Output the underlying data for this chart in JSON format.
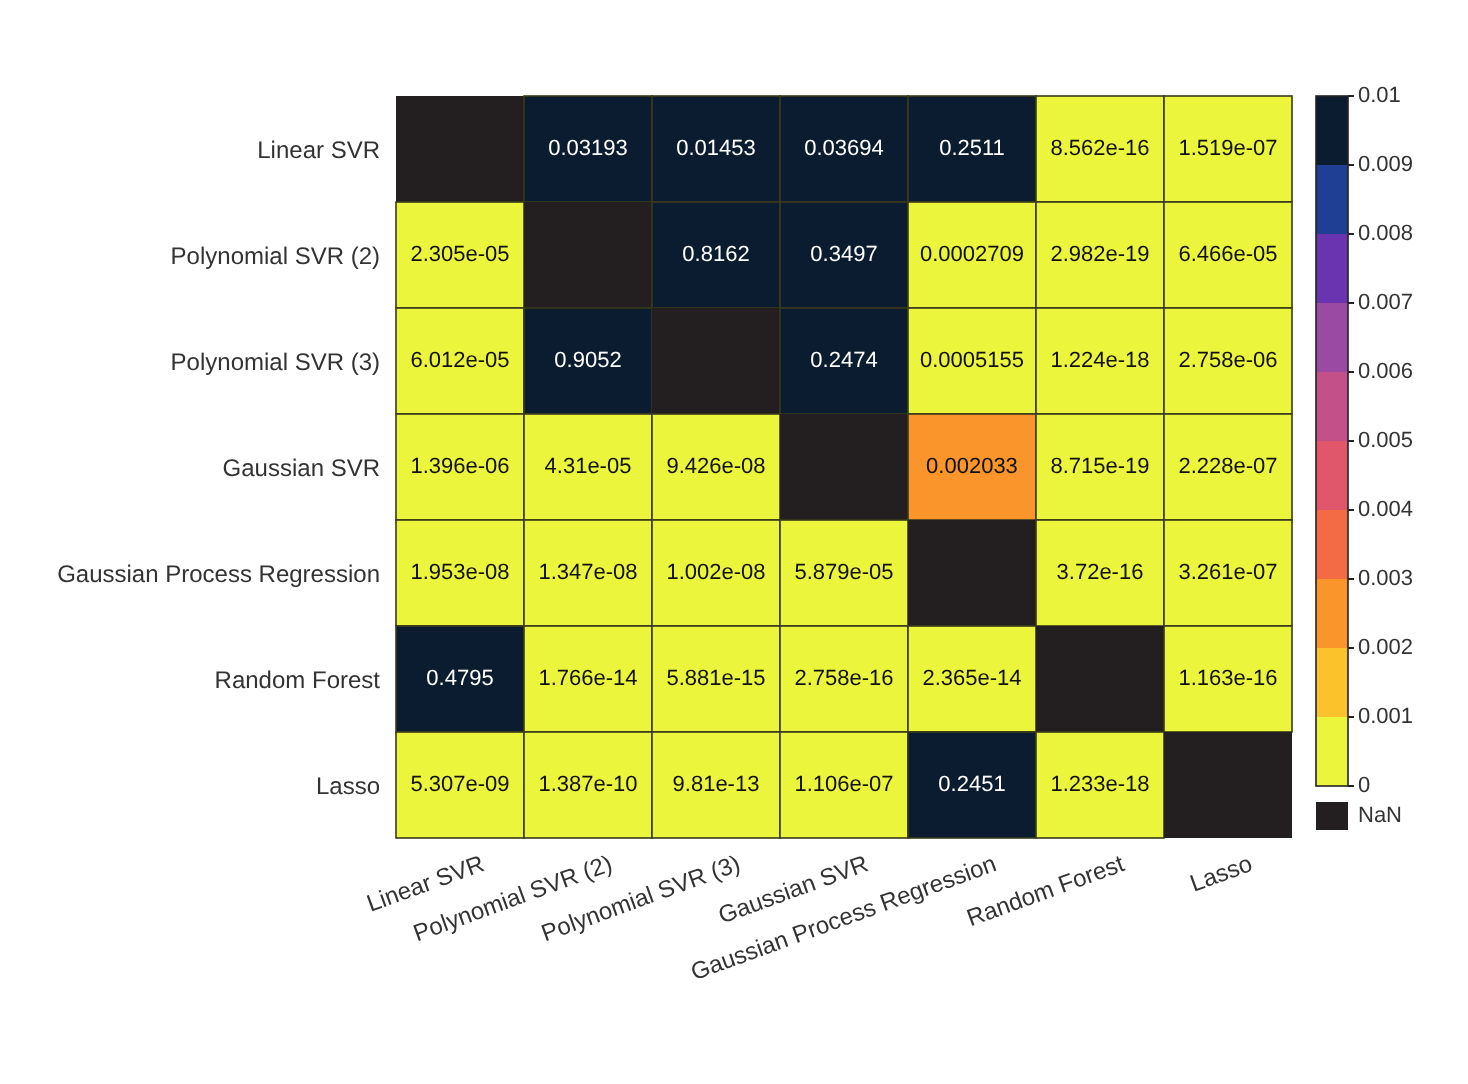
{
  "chart_data": {
    "type": "heatmap",
    "categories": [
      "Linear SVR",
      "Polynomial SVR (2)",
      "Polynomial SVR (3)",
      "Gaussian SVR",
      "Gaussian Process Regression",
      "Random Forest",
      "Lasso"
    ],
    "y_categories": [
      "Linear SVR",
      "Polynomial SVR (2)",
      "Polynomial SVR (3)",
      "Gaussian SVR",
      "Gaussian Process Regression",
      "Random Forest",
      "Lasso"
    ],
    "cells": [
      [
        null,
        0.03193,
        0.01453,
        0.03694,
        0.2511,
        8.562e-16,
        1.519e-07
      ],
      [
        2.305e-05,
        null,
        0.8162,
        0.3497,
        0.0002709,
        2.982e-19,
        6.466e-05
      ],
      [
        6.012e-05,
        0.9052,
        null,
        0.2474,
        0.0005155,
        1.224e-18,
        2.758e-06
      ],
      [
        1.396e-06,
        4.31e-05,
        9.426e-08,
        null,
        0.002033,
        8.715e-19,
        2.228e-07
      ],
      [
        1.953e-08,
        1.347e-08,
        1.002e-08,
        5.879e-05,
        null,
        3.72e-16,
        3.261e-07
      ],
      [
        0.4795,
        1.766e-14,
        5.881e-15,
        2.758e-16,
        2.365e-14,
        null,
        1.163e-16
      ],
      [
        5.307e-09,
        1.387e-10,
        9.81e-13,
        1.106e-07,
        0.2451,
        1.233e-18,
        null
      ]
    ],
    "cell_labels": [
      [
        null,
        "0.03193",
        "0.01453",
        "0.03694",
        "0.2511",
        "8.562e-16",
        "1.519e-07"
      ],
      [
        "2.305e-05",
        null,
        "0.8162",
        "0.3497",
        "0.0002709",
        "2.982e-19",
        "6.466e-05"
      ],
      [
        "6.012e-05",
        "0.9052",
        null,
        "0.2474",
        "0.0005155",
        "1.224e-18",
        "2.758e-06"
      ],
      [
        "1.396e-06",
        "4.31e-05",
        "9.426e-08",
        null,
        "0.002033",
        "8.715e-19",
        "2.228e-07"
      ],
      [
        "1.953e-08",
        "1.347e-08",
        "1.002e-08",
        "5.879e-05",
        null,
        "3.72e-16",
        "3.261e-07"
      ],
      [
        "0.4795",
        "1.766e-14",
        "5.881e-15",
        "2.758e-16",
        "2.365e-14",
        null,
        "1.163e-16"
      ],
      [
        "5.307e-09",
        "1.387e-10",
        "9.81e-13",
        "1.106e-07",
        "0.2451",
        "1.233e-18",
        null
      ]
    ],
    "clim": [
      0,
      0.01
    ],
    "cticks": [
      0,
      0.001,
      0.002,
      0.003,
      0.004,
      0.005,
      0.006,
      0.007,
      0.008,
      0.009,
      0.01
    ],
    "colors": [
      "#eaf53b",
      "#fbc22c",
      "#f9952a",
      "#f26b45",
      "#e0566a",
      "#c4508a",
      "#9b4aa3",
      "#6a34b0",
      "#1f3f94",
      "#0b1c30"
    ],
    "annotations": [
      "NaN"
    ]
  }
}
